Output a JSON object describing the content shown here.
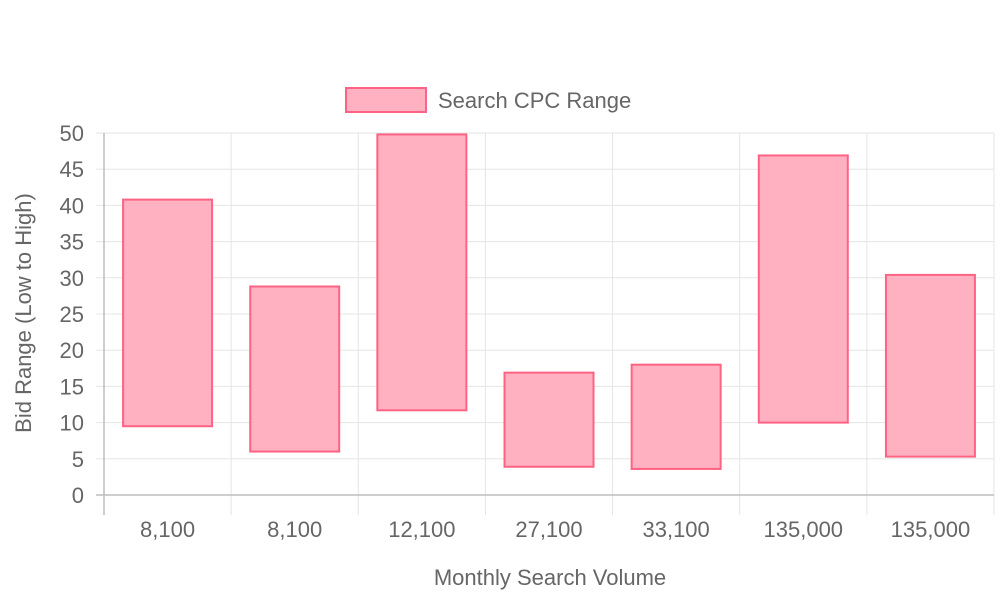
{
  "chart_data": {
    "type": "bar",
    "subtype": "floating-range",
    "categories": [
      "8,100",
      "8,100",
      "12,100",
      "27,100",
      "33,100",
      "135,000",
      "135,000"
    ],
    "series": [
      {
        "name": "Search CPC Range",
        "ranges": [
          [
            9.5,
            40.8
          ],
          [
            6.0,
            28.8
          ],
          [
            11.7,
            49.8
          ],
          [
            3.9,
            16.9
          ],
          [
            3.6,
            18.0
          ],
          [
            10.0,
            46.9
          ],
          [
            5.3,
            30.4
          ]
        ]
      }
    ],
    "legend": {
      "labels": [
        "Search CPC Range"
      ],
      "position": "top"
    },
    "xlabel": "Monthly Search Volume",
    "ylabel": "Bid Range (Low to High)",
    "ylim": [
      0,
      50
    ],
    "yticks": [
      0,
      5,
      10,
      15,
      20,
      25,
      30,
      35,
      40,
      45,
      50
    ],
    "grid": true,
    "colors": {
      "fill": "#ffb0c1",
      "stroke": "#ff6384",
      "grid": "#e5e5e5",
      "axis": "#bdbdbd",
      "text": "#666666"
    }
  }
}
